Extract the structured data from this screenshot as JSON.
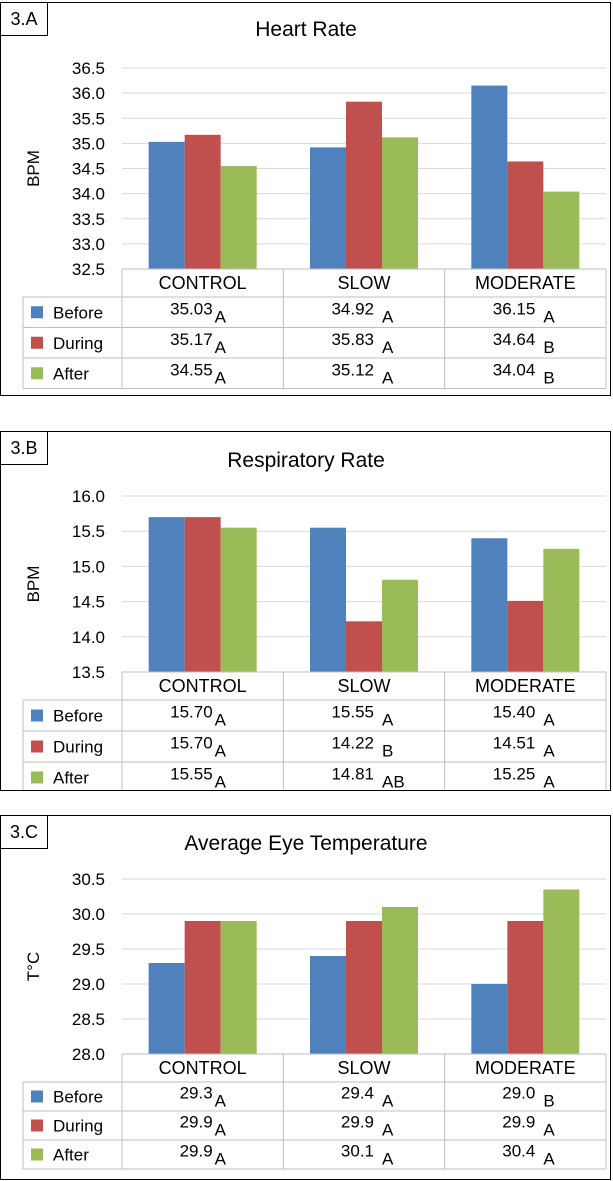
{
  "colors": {
    "before": "#4f81bd",
    "during": "#c0504d",
    "after": "#9bbb59",
    "grid": "#d9d9d9",
    "table": "#bfbfbf"
  },
  "chart_data": [
    {
      "type": "bar",
      "panel_label": "3.A",
      "title": "Heart Rate",
      "ylabel": "BPM",
      "ylim": [
        32.5,
        36.5
      ],
      "yticks": [
        "32.5",
        "33.0",
        "33.5",
        "34.0",
        "34.5",
        "35.0",
        "35.5",
        "36.0",
        "36.5"
      ],
      "categories": [
        "CONTROL",
        "SLOW",
        "MODERATE"
      ],
      "series": [
        {
          "name": "Before",
          "values": [
            35.03,
            34.92,
            36.15
          ],
          "labels": [
            "35.03",
            "34.92",
            "36.15"
          ],
          "groups": [
            "A",
            "A",
            "A"
          ]
        },
        {
          "name": "During",
          "values": [
            35.17,
            35.83,
            34.64
          ],
          "labels": [
            "35.17",
            "35.83",
            "34.64"
          ],
          "groups": [
            "A",
            "A",
            "B"
          ]
        },
        {
          "name": "After",
          "values": [
            34.55,
            35.12,
            34.04
          ],
          "labels": [
            "34.55",
            "35.12",
            "34.04"
          ],
          "groups": [
            "A",
            "A",
            "B"
          ]
        }
      ]
    },
    {
      "type": "bar",
      "panel_label": "3.B",
      "title": "Respiratory Rate",
      "ylabel": "BPM",
      "ylim": [
        13.5,
        16.0
      ],
      "yticks": [
        "13.5",
        "14.0",
        "14.5",
        "15.0",
        "15.5",
        "16.0"
      ],
      "categories": [
        "CONTROL",
        "SLOW",
        "MODERATE"
      ],
      "series": [
        {
          "name": "Before",
          "values": [
            15.7,
            15.55,
            15.4
          ],
          "labels": [
            "15.70",
            "15.55",
            "15.40"
          ],
          "groups": [
            "A",
            "A",
            "A"
          ]
        },
        {
          "name": "During",
          "values": [
            15.7,
            14.22,
            14.51
          ],
          "labels": [
            "15.70",
            "14.22",
            "14.51"
          ],
          "groups": [
            "A",
            "B",
            "A"
          ]
        },
        {
          "name": "After",
          "values": [
            15.55,
            14.81,
            15.25
          ],
          "labels": [
            "15.55",
            "14.81",
            "15.25"
          ],
          "groups": [
            "A",
            "AB",
            "A"
          ]
        }
      ]
    },
    {
      "type": "bar",
      "panel_label": "3.C",
      "title": "Average Eye Temperature",
      "ylabel": "T°C",
      "ylim": [
        28.0,
        30.5
      ],
      "yticks": [
        "28.0",
        "28.5",
        "29.0",
        "29.5",
        "30.0",
        "30.5"
      ],
      "categories": [
        "CONTROL",
        "SLOW",
        "MODERATE"
      ],
      "series": [
        {
          "name": "Before",
          "values": [
            29.3,
            29.4,
            29.0
          ],
          "labels": [
            "29.3",
            "29.4",
            "29.0"
          ],
          "groups": [
            "A",
            "A",
            "B"
          ]
        },
        {
          "name": "During",
          "values": [
            29.9,
            29.9,
            29.9
          ],
          "labels": [
            "29.9",
            "29.9",
            "29.9"
          ],
          "groups": [
            "A",
            "A",
            "A"
          ]
        },
        {
          "name": "After",
          "values": [
            29.9,
            30.1,
            30.35
          ],
          "labels": [
            "29.9",
            "30.1",
            "30.4"
          ],
          "groups": [
            "A",
            "A",
            "A"
          ]
        }
      ]
    }
  ]
}
